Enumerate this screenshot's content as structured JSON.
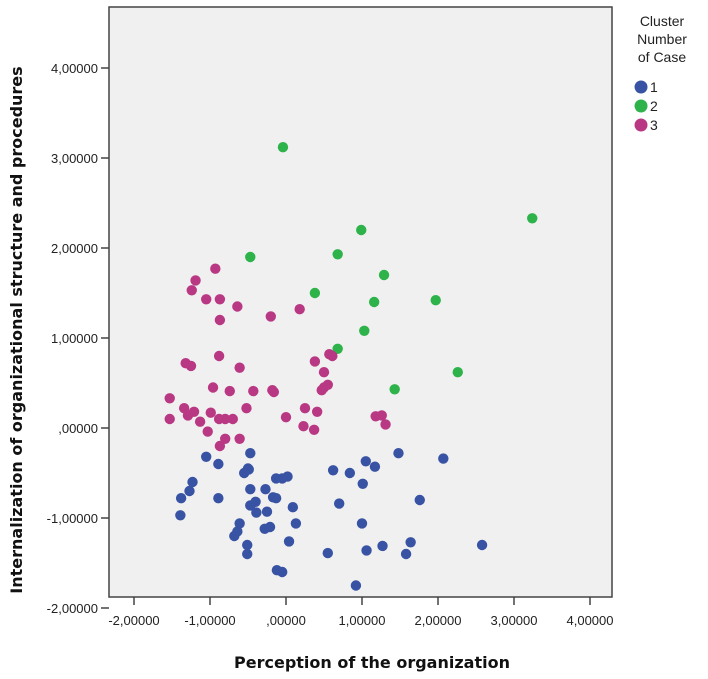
{
  "chart_data": {
    "type": "scatter",
    "title": "",
    "xlabel": "Perception of the organization",
    "ylabel": "Internalization of organizational structure and procedures",
    "xlim": [
      -2.4,
      4.4
    ],
    "ylim": [
      -2.0,
      4.6
    ],
    "x_ticks": [
      -2,
      -1,
      0,
      1,
      2,
      3,
      4
    ],
    "x_tick_labels": [
      "-2,00000",
      "-1,00000",
      ",00000",
      "1,00000",
      "2,00000",
      "3,00000",
      "4,00000"
    ],
    "y_ticks": [
      -2,
      -1,
      0,
      1,
      2,
      3,
      4
    ],
    "y_tick_labels": [
      "-2,00000",
      "-1,00000",
      ",00000",
      "1,00000",
      "2,00000",
      "3,00000",
      "4,00000"
    ],
    "grid": false,
    "legend": {
      "title": "Cluster Number of Case",
      "position": "right"
    },
    "series": [
      {
        "name": "1",
        "color": "#3953a4",
        "points": [
          [
            -0.47,
            -0.28
          ],
          [
            -0.5,
            -0.45
          ],
          [
            -1.05,
            -0.32
          ],
          [
            -0.89,
            -0.4
          ],
          [
            -1.23,
            -0.6
          ],
          [
            -1.38,
            -0.78
          ],
          [
            -1.27,
            -0.7
          ],
          [
            -0.89,
            -0.78
          ],
          [
            -1.39,
            -0.97
          ],
          [
            -0.55,
            -0.5
          ],
          [
            -0.49,
            -0.46
          ],
          [
            -0.47,
            -0.68
          ],
          [
            -0.47,
            -0.86
          ],
          [
            -0.4,
            -0.82
          ],
          [
            -0.27,
            -0.68
          ],
          [
            -0.13,
            -0.56
          ],
          [
            -0.05,
            -0.56
          ],
          [
            0.02,
            -0.54
          ],
          [
            -0.13,
            -0.78
          ],
          [
            -0.17,
            -0.77
          ],
          [
            -0.25,
            -0.93
          ],
          [
            -0.39,
            -0.94
          ],
          [
            -0.61,
            -1.06
          ],
          [
            -0.64,
            -1.15
          ],
          [
            -0.68,
            -1.2
          ],
          [
            -0.51,
            -1.3
          ],
          [
            -0.51,
            -1.4
          ],
          [
            -0.28,
            -1.12
          ],
          [
            -0.21,
            -1.1
          ],
          [
            0.09,
            -0.88
          ],
          [
            0.13,
            -1.06
          ],
          [
            0.04,
            -1.26
          ],
          [
            -0.05,
            -1.6
          ],
          [
            -0.12,
            -1.58
          ],
          [
            0.62,
            -0.47
          ],
          [
            0.84,
            -0.5
          ],
          [
            1.01,
            -0.62
          ],
          [
            1.05,
            -0.37
          ],
          [
            1.17,
            -0.43
          ],
          [
            1.48,
            -0.28
          ],
          [
            1.76,
            -0.8
          ],
          [
            2.07,
            -0.34
          ],
          [
            0.7,
            -0.84
          ],
          [
            1.0,
            -1.06
          ],
          [
            1.06,
            -1.36
          ],
          [
            1.27,
            -1.31
          ],
          [
            1.58,
            -1.4
          ],
          [
            1.64,
            -1.27
          ],
          [
            2.58,
            -1.3
          ],
          [
            0.55,
            -1.39
          ],
          [
            0.92,
            -1.75
          ]
        ]
      },
      {
        "name": "2",
        "color": "#2db34a",
        "points": [
          [
            -0.04,
            3.12
          ],
          [
            3.24,
            2.33
          ],
          [
            0.99,
            2.2
          ],
          [
            -0.47,
            1.9
          ],
          [
            0.68,
            1.93
          ],
          [
            1.29,
            1.7
          ],
          [
            0.38,
            1.5
          ],
          [
            1.16,
            1.4
          ],
          [
            1.97,
            1.42
          ],
          [
            1.03,
            1.08
          ],
          [
            0.68,
            0.88
          ],
          [
            2.26,
            0.62
          ],
          [
            1.43,
            0.43
          ]
        ]
      },
      {
        "name": "3",
        "color": "#b93884",
        "points": [
          [
            -0.93,
            1.77
          ],
          [
            -1.19,
            1.64
          ],
          [
            -1.24,
            1.53
          ],
          [
            -1.05,
            1.43
          ],
          [
            -0.87,
            1.43
          ],
          [
            -0.64,
            1.35
          ],
          [
            -0.87,
            1.2
          ],
          [
            -0.2,
            1.24
          ],
          [
            0.18,
            1.32
          ],
          [
            -0.88,
            0.8
          ],
          [
            -1.32,
            0.72
          ],
          [
            -1.25,
            0.69
          ],
          [
            -0.61,
            0.67
          ],
          [
            -0.96,
            0.45
          ],
          [
            -0.74,
            0.41
          ],
          [
            -0.43,
            0.41
          ],
          [
            -0.16,
            0.4
          ],
          [
            -1.53,
            0.33
          ],
          [
            -1.34,
            0.22
          ],
          [
            -1.21,
            0.18
          ],
          [
            -1.29,
            0.14
          ],
          [
            -1.13,
            0.07
          ],
          [
            -0.99,
            0.17
          ],
          [
            -0.88,
            0.1
          ],
          [
            -0.8,
            0.1
          ],
          [
            -0.52,
            0.22
          ],
          [
            -1.53,
            0.1
          ],
          [
            -0.7,
            0.1
          ],
          [
            -0.61,
            -0.12
          ],
          [
            -1.03,
            -0.04
          ],
          [
            -0.87,
            -0.2
          ],
          [
            -0.8,
            -0.12
          ],
          [
            0.38,
            0.74
          ],
          [
            0.61,
            0.8
          ],
          [
            0.57,
            0.82
          ],
          [
            0.5,
            0.62
          ],
          [
            0.55,
            0.48
          ],
          [
            0.5,
            0.45
          ],
          [
            0.41,
            0.18
          ],
          [
            0.25,
            0.22
          ],
          [
            0.23,
            0.02
          ],
          [
            0.37,
            -0.02
          ],
          [
            0.0,
            0.12
          ],
          [
            1.18,
            0.13
          ],
          [
            1.26,
            0.14
          ],
          [
            1.31,
            0.04
          ],
          [
            -0.18,
            0.42
          ],
          [
            0.47,
            0.42
          ]
        ]
      }
    ]
  }
}
